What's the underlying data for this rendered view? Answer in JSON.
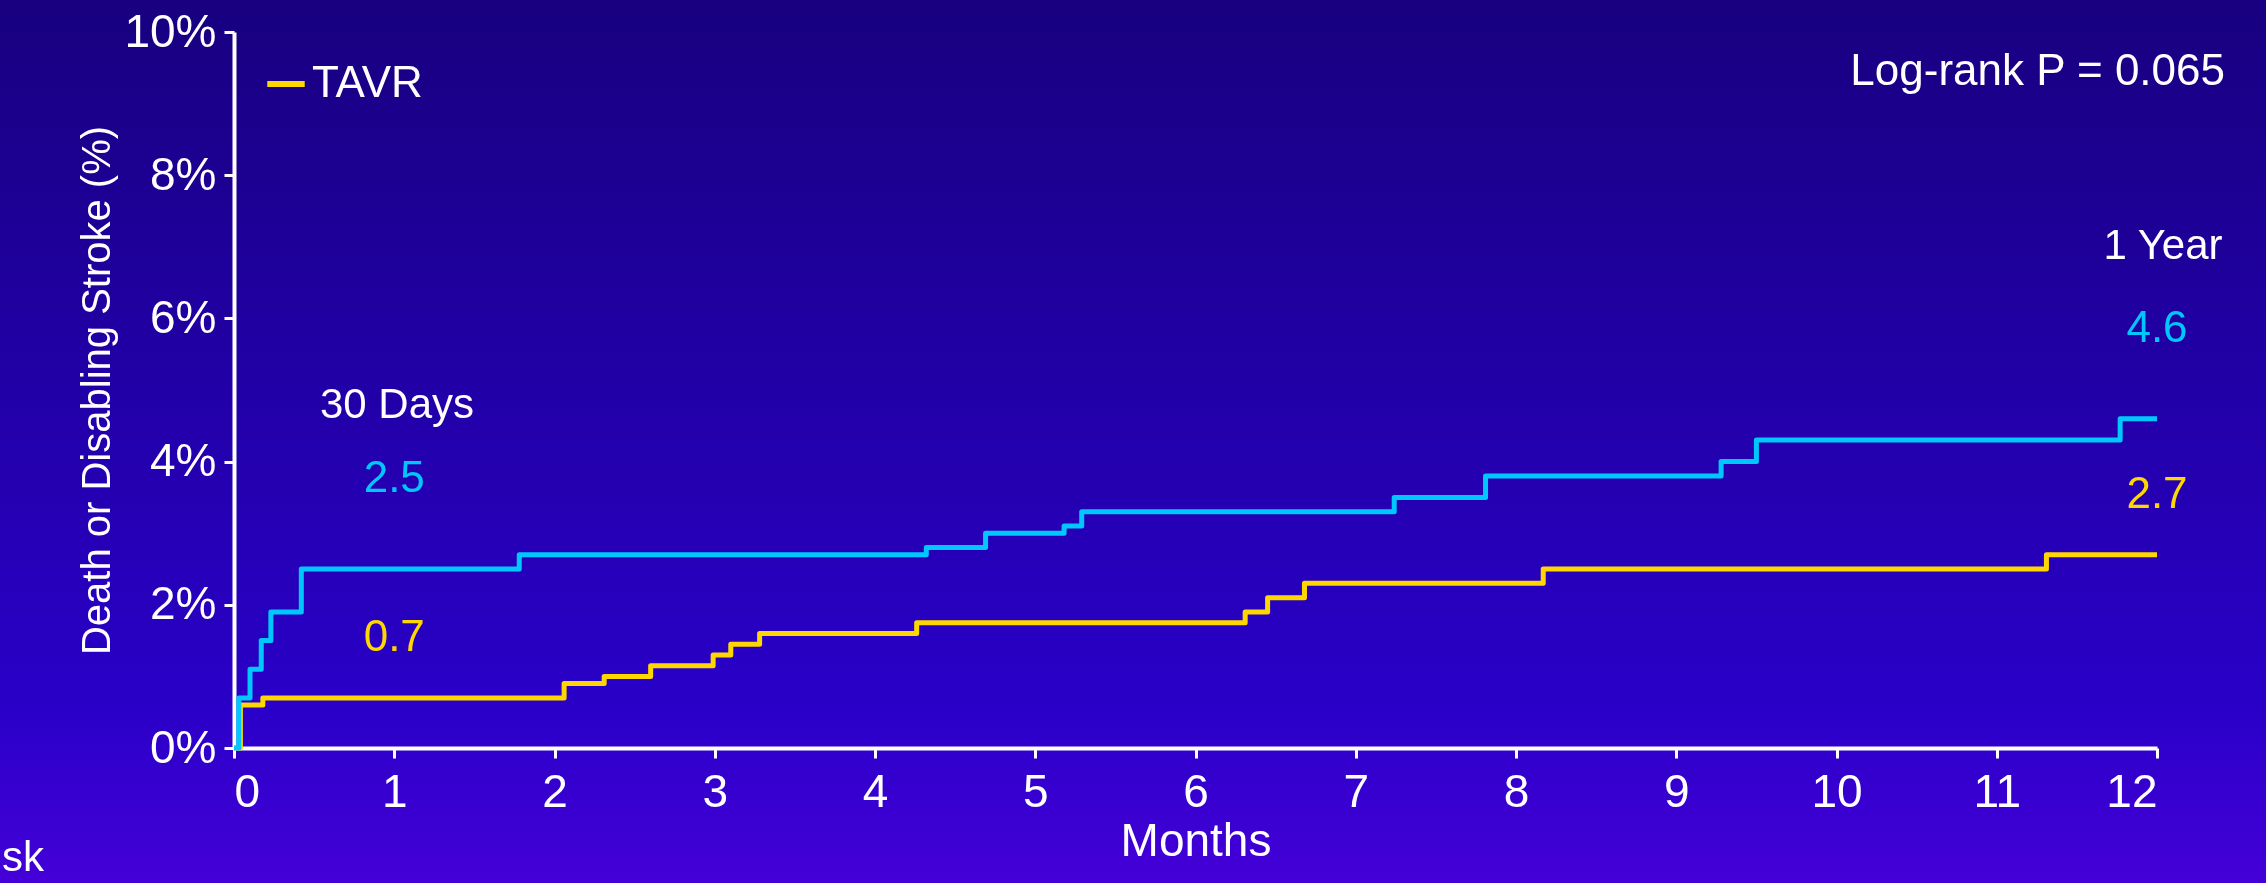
{
  "chart_data": {
    "type": "step",
    "xlabel": "Months",
    "ylabel": "Death or Disabling Stroke (%)",
    "xlim": [
      0,
      12
    ],
    "xticks": [
      0,
      1,
      2,
      3,
      4,
      5,
      6,
      7,
      8,
      9,
      10,
      11,
      12
    ],
    "ylim": [
      0,
      10
    ],
    "yticks": [
      {
        "value": 0,
        "label": "0%"
      },
      {
        "value": 2,
        "label": "2%"
      },
      {
        "value": 4,
        "label": "4%"
      },
      {
        "value": 6,
        "label": "6%"
      },
      {
        "value": 8,
        "label": "8%"
      },
      {
        "value": 10,
        "label": "10%"
      }
    ],
    "grid": false,
    "legend": "top left",
    "line_style": "solid",
    "marker": "none",
    "series": [
      {
        "name": "TAVR",
        "color": "#ffd700",
        "x": [
          0,
          0.04,
          0.18,
          1,
          2.06,
          2.31,
          2.6,
          2.99,
          3.1,
          3.28,
          4.26,
          6.31,
          6.45,
          6.68,
          8.17,
          11.31,
          12
        ],
        "values": [
          0,
          0.6,
          0.7,
          0.7,
          0.9,
          1.0,
          1.15,
          1.3,
          1.45,
          1.6,
          1.75,
          1.9,
          2.1,
          2.3,
          2.5,
          2.7,
          2.7
        ],
        "value_labels": [
          null,
          null,
          null,
          "0.7",
          null,
          null,
          null,
          null,
          null,
          null,
          null,
          null,
          null,
          null,
          null,
          null,
          "2.7"
        ]
      },
      {
        "color": "#00c8ff",
        "x": [
          0,
          0.03,
          0.1,
          0.17,
          0.23,
          0.42,
          1,
          1.78,
          4.32,
          4.69,
          5.18,
          5.29,
          7.24,
          7.81,
          9.28,
          9.5,
          11.77,
          12
        ],
        "values": [
          0,
          0.7,
          1.1,
          1.5,
          1.9,
          2.5,
          2.5,
          2.7,
          2.8,
          3.0,
          3.1,
          3.3,
          3.5,
          3.8,
          4.0,
          4.3,
          4.6,
          4.6
        ],
        "value_labels": [
          null,
          null,
          null,
          null,
          null,
          null,
          "2.5",
          null,
          null,
          null,
          null,
          null,
          null,
          null,
          null,
          null,
          null,
          "4.6"
        ]
      }
    ],
    "annotations": [
      "Log-rank P = 0.065",
      "30 Days",
      "1 Year",
      "sk"
    ]
  }
}
